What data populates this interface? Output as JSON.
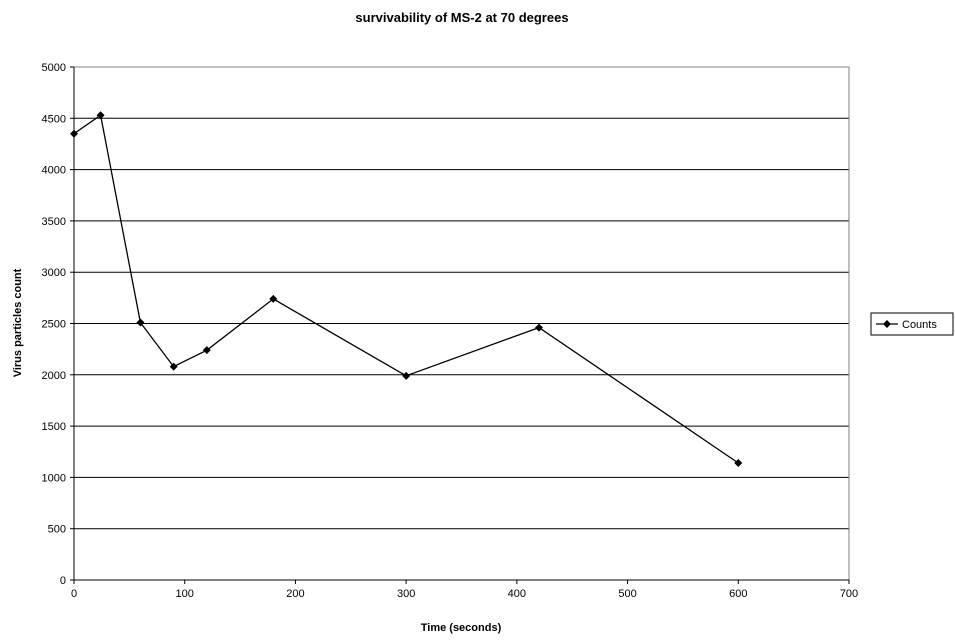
{
  "chart_data": {
    "type": "line",
    "title": "survivability of MS-2 at 70 degrees",
    "xlabel": "Time (seconds)",
    "ylabel": "Virus particles count",
    "xlim": [
      0,
      700
    ],
    "ylim": [
      0,
      5000
    ],
    "xticks": [
      "0",
      "100",
      "200",
      "300",
      "400",
      "500",
      "600",
      "700"
    ],
    "yticks": [
      "0",
      "500",
      "1000",
      "1500",
      "2000",
      "2500",
      "3000",
      "3500",
      "4000",
      "4500",
      "5000"
    ],
    "grid": "horizontal",
    "legend_position": "right",
    "series": [
      {
        "name": "Counts",
        "color": "#000000",
        "marker": "diamond",
        "x": [
          0,
          24,
          60,
          90,
          120,
          180,
          300,
          420,
          600
        ],
        "y": [
          4350,
          4530,
          2510,
          2080,
          2240,
          2740,
          1990,
          2460,
          1140
        ]
      }
    ]
  }
}
